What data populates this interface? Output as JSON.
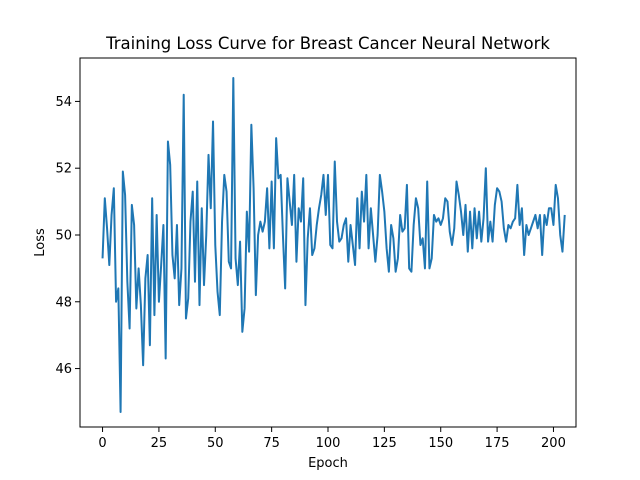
{
  "chart_data": {
    "type": "line",
    "title": "Training Loss Curve for Breast Cancer Neural Network",
    "xlabel": "Epoch",
    "ylabel": "Loss",
    "xlim": [
      -10,
      210
    ],
    "ylim": [
      44.25,
      55.3
    ],
    "x_ticks": [
      0,
      25,
      50,
      75,
      100,
      125,
      150,
      175,
      200
    ],
    "y_ticks": [
      46,
      48,
      50,
      52,
      54
    ],
    "grid": false,
    "legend": "none",
    "series": [
      {
        "color": "#1f77b4",
        "x_start": 0,
        "x_step": 1,
        "values": [
          49.3,
          51.1,
          50.2,
          49.1,
          50.6,
          51.4,
          48.0,
          48.4,
          44.7,
          51.9,
          51.2,
          48.6,
          47.2,
          50.9,
          50.3,
          47.8,
          49.0,
          47.9,
          46.1,
          48.7,
          49.4,
          46.7,
          51.1,
          47.6,
          50.6,
          48.0,
          49.1,
          50.3,
          46.3,
          52.8,
          52.1,
          49.4,
          48.7,
          50.3,
          47.9,
          49.0,
          54.2,
          47.5,
          48.1,
          50.4,
          51.3,
          48.6,
          51.6,
          47.9,
          50.8,
          48.5,
          50.0,
          52.4,
          50.8,
          53.4,
          49.7,
          48.3,
          47.6,
          50.4,
          51.8,
          51.3,
          49.2,
          49.0,
          54.7,
          49.3,
          48.5,
          49.8,
          47.1,
          47.8,
          50.7,
          49.5,
          53.3,
          51.4,
          48.2,
          50.0,
          50.4,
          50.1,
          50.4,
          51.4,
          49.6,
          51.6,
          49.6,
          52.9,
          51.7,
          51.8,
          50.0,
          48.4,
          51.7,
          51.0,
          50.3,
          51.8,
          49.2,
          50.8,
          50.4,
          51.7,
          47.9,
          49.9,
          50.8,
          49.4,
          49.6,
          50.3,
          50.8,
          51.2,
          51.8,
          50.6,
          51.8,
          49.7,
          49.6,
          52.2,
          50.4,
          49.8,
          49.9,
          50.3,
          50.5,
          49.2,
          50.3,
          49.7,
          49.1,
          51.1,
          49.6,
          51.3,
          50.4,
          51.8,
          49.6,
          50.8,
          50.0,
          49.2,
          50.0,
          51.8,
          51.3,
          50.7,
          49.6,
          48.9,
          50.3,
          49.9,
          48.9,
          49.3,
          50.6,
          50.1,
          50.2,
          51.5,
          49.0,
          48.9,
          50.3,
          51.1,
          50.8,
          49.7,
          49.9,
          49.0,
          51.6,
          49.0,
          49.3,
          50.6,
          50.4,
          50.5,
          50.3,
          50.5,
          51.1,
          51.0,
          50.1,
          49.7,
          50.2,
          51.6,
          51.2,
          50.7,
          50.0,
          50.9,
          49.5,
          50.7,
          49.6,
          50.8,
          49.9,
          50.7,
          49.8,
          50.5,
          52.0,
          49.8,
          50.4,
          49.8,
          50.9,
          51.4,
          51.3,
          51.0,
          50.2,
          49.8,
          50.3,
          50.2,
          50.4,
          50.5,
          51.5,
          50.3,
          50.8,
          49.4,
          50.3,
          50.0,
          50.2,
          50.4,
          50.6,
          50.2,
          50.6,
          49.4,
          50.6,
          50.3,
          50.8,
          50.8,
          50.3,
          51.5,
          51.1,
          50.0,
          49.5,
          50.6
        ]
      }
    ]
  }
}
